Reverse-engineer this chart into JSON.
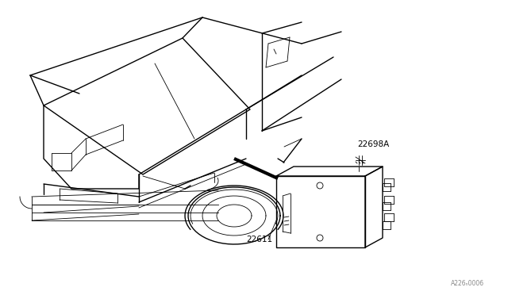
{
  "background_color": "#ffffff",
  "line_color": "#000000",
  "label_22698A": "22698A",
  "label_22611": "22611",
  "watermark": "A226ₙ0006",
  "fig_width": 6.4,
  "fig_height": 3.72,
  "dpi": 100,
  "lw_main": 1.0,
  "lw_thin": 0.6,
  "lw_thick": 1.5
}
